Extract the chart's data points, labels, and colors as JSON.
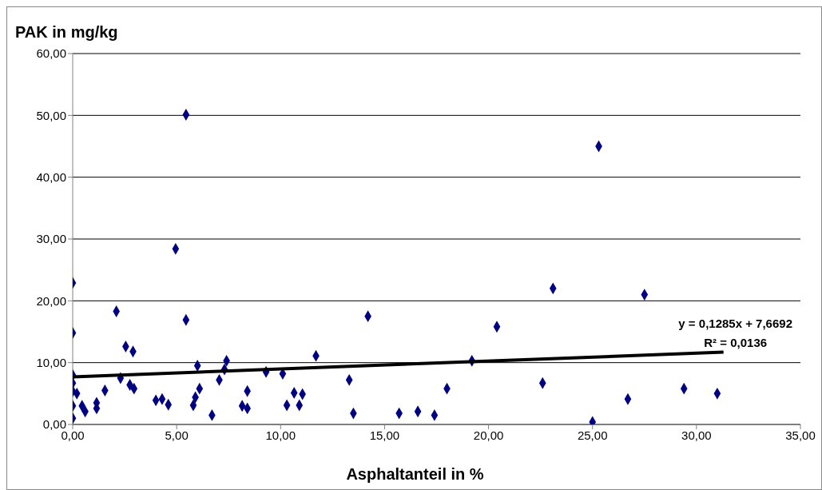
{
  "chart_data": {
    "type": "scatter",
    "ylabel": "PAK in mg/kg",
    "xlabel": "Asphaltanteil in %",
    "annotations": [
      "y = 0,1285x + 7,6692",
      "R² = 0,0136"
    ],
    "xlim": [
      0,
      35
    ],
    "ylim": [
      0,
      60
    ],
    "xticks": [
      {
        "value": 0,
        "label": "0,00"
      },
      {
        "value": 5,
        "label": "5,00"
      },
      {
        "value": 10,
        "label": "10,00"
      },
      {
        "value": 15,
        "label": "15,00"
      },
      {
        "value": 20,
        "label": "20,00"
      },
      {
        "value": 25,
        "label": "25,00"
      },
      {
        "value": 30,
        "label": "30,00"
      },
      {
        "value": 35,
        "label": "35,00"
      }
    ],
    "yticks": [
      {
        "value": 0,
        "label": "0,00"
      },
      {
        "value": 10,
        "label": "10,00"
      },
      {
        "value": 20,
        "label": "20,00"
      },
      {
        "value": 30,
        "label": "30,00"
      },
      {
        "value": 40,
        "label": "40,00"
      },
      {
        "value": 50,
        "label": "50,00"
      },
      {
        "value": 60,
        "label": "60,00"
      }
    ],
    "grid": "y",
    "marker": "diamond",
    "series": [
      {
        "color": "#000080",
        "x": [
          0,
          0,
          0,
          0,
          0,
          0,
          0,
          0.2,
          0.45,
          0.6,
          1.15,
          1.15,
          1.55,
          2.1,
          2.3,
          2.55,
          2.9,
          2.75,
          2.95,
          4.0,
          4.3,
          4.6,
          4.95,
          5.45,
          5.45,
          5.8,
          5.9,
          6.0,
          6.1,
          6.7,
          7.05,
          7.3,
          7.4,
          8.15,
          8.4,
          8.4,
          9.3,
          10.1,
          10.3,
          10.65,
          10.9,
          11.05,
          11.7,
          13.3,
          13.5,
          14.2,
          15.7,
          16.6,
          17.4,
          18.0,
          19.2,
          20.4,
          22.6,
          23.1,
          25.0,
          25.3,
          26.7,
          27.5,
          29.4,
          31.0
        ],
        "values": [
          22.9,
          14.8,
          8.0,
          6.7,
          5.4,
          3.0,
          1.0,
          5.0,
          3.0,
          2.1,
          3.5,
          2.6,
          5.5,
          18.3,
          7.5,
          12.6,
          11.8,
          6.4,
          5.8,
          3.9,
          4.1,
          3.2,
          28.4,
          50.1,
          16.9,
          3.1,
          4.4,
          9.5,
          5.8,
          1.5,
          7.2,
          8.9,
          10.3,
          3.0,
          2.6,
          5.4,
          8.5,
          8.2,
          3.1,
          5.1,
          3.1,
          4.9,
          11.1,
          7.2,
          1.8,
          17.5,
          1.8,
          2.1,
          1.5,
          5.8,
          10.3,
          15.8,
          6.7,
          22.0,
          0.4,
          45.0,
          4.1,
          21.0,
          5.8,
          5.0
        ]
      },
      {
        "type": "line",
        "color": "#000000",
        "marker": "none",
        "x": [
          0,
          31.3
        ],
        "values": [
          7.7,
          11.7
        ]
      }
    ]
  }
}
